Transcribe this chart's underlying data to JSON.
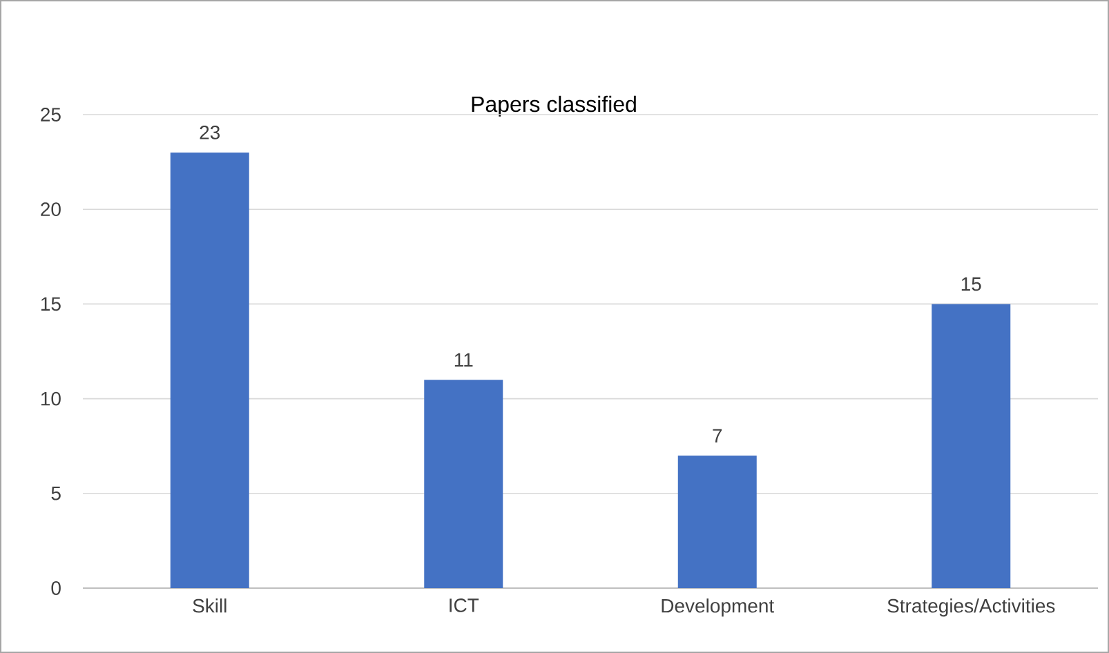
{
  "chart_data": {
    "type": "bar",
    "title": "Papers classified",
    "categories": [
      "Skill",
      "ICT",
      "Development",
      "Strategies/Activities"
    ],
    "values": [
      23,
      11,
      7,
      15
    ],
    "color": "#4472c4",
    "ylim": [
      0,
      25
    ],
    "yticks": [
      0,
      5,
      10,
      15,
      20,
      25
    ],
    "grid": "y",
    "data_labels": true
  }
}
